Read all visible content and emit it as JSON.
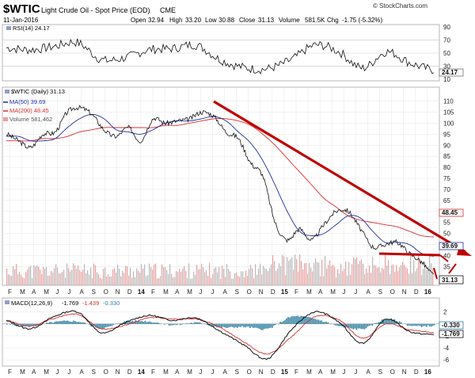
{
  "header": {
    "symbol": "$WTIC",
    "description": "Light Crude Oil - Spot Price (EOD)",
    "exchange": "CME",
    "date": "11-Jan-2016",
    "open_label": "Open",
    "open": "32.94",
    "high_label": "High",
    "high": "33.20",
    "low_label": "Low",
    "low": "30.88",
    "close_label": "Close",
    "close": "31.13",
    "volume_label": "Volume",
    "volume": "581.5K",
    "chg_label": "Chg",
    "chg": "-1.75 (-5.32%)",
    "credit": "© StockCharts.com"
  },
  "colors": {
    "price": "#111111",
    "ma50": "#1f2f9e",
    "ma200": "#d62f2f",
    "volume": "#e8a0a0",
    "annotation": "#c00000",
    "macd": "#111111",
    "signal": "#d62f2f",
    "histogram": "#2f7f9f",
    "grid": "#e6e6e6",
    "rsi_band": "#b8b8b8"
  },
  "rsi_panel": {
    "legend": "RSI(14) 24.17",
    "current_label": "24.17",
    "y_ticks": [
      "90",
      "70",
      "50",
      "30",
      "10"
    ]
  },
  "price_panel": {
    "legend_symbol": "$WTIC (Daily) 31.13",
    "legend_ma50": "MA(50) 39.69",
    "legend_ma200": "MA(200) 48.45",
    "legend_volume": "Volume 581,462",
    "y_ticks": [
      "110",
      "105",
      "100",
      "95",
      "90",
      "85",
      "80",
      "75",
      "70",
      "65",
      "60",
      "55",
      "50",
      "45",
      "40",
      "35"
    ],
    "badge_ma200": "48.45",
    "badge_ma50": "39.69",
    "badge_close": "31.13"
  },
  "macd_panel": {
    "legend_name": "MACD(12,26,9)",
    "legend_macd": "-1.769",
    "legend_signal": "-1.439",
    "legend_hist": "-0.330",
    "y_ticks": [
      "2",
      "0",
      "-2",
      "-4",
      "-6"
    ],
    "badge_hist": "-0.330",
    "badge_macd": "-1.769"
  },
  "x_axis_labels": [
    "F",
    "M",
    "A",
    "M",
    "J",
    "J",
    "A",
    "S",
    "O",
    "N",
    "D",
    "14",
    "F",
    "M",
    "A",
    "M",
    "J",
    "J",
    "A",
    "S",
    "O",
    "N",
    "D",
    "15",
    "F",
    "M",
    "A",
    "M",
    "J",
    "J",
    "A",
    "S",
    "O",
    "N",
    "D",
    "16"
  ],
  "chart_data": [
    {
      "type": "line",
      "title": "RSI(14)",
      "ylim": [
        10,
        90
      ],
      "x": [
        "Feb 2013",
        "Apr 2013",
        "Jun 2013",
        "Aug 2013",
        "Oct 2013",
        "Dec 2013",
        "Feb 2014",
        "Apr 2014",
        "Jun 2014",
        "Aug 2014",
        "Oct 2014",
        "Dec 2014",
        "Feb 2015",
        "Apr 2015",
        "Jun 2015",
        "Aug 2015",
        "Oct 2015",
        "Dec 2015",
        "Jan 2016"
      ],
      "series": [
        {
          "name": "RSI(14)",
          "values": [
            58,
            55,
            60,
            66,
            40,
            43,
            55,
            57,
            62,
            40,
            28,
            26,
            40,
            62,
            52,
            27,
            52,
            35,
            24.17
          ]
        }
      ]
    },
    {
      "type": "line",
      "title": "$WTIC (Daily)",
      "ylim": [
        30,
        112
      ],
      "x": [
        "Feb 2013",
        "Mar 2013",
        "Apr 2013",
        "May 2013",
        "Jun 2013",
        "Jul 2013",
        "Aug 2013",
        "Sep 2013",
        "Oct 2013",
        "Nov 2013",
        "Dec 2013",
        "Jan 2014",
        "Feb 2014",
        "Mar 2014",
        "Apr 2014",
        "May 2014",
        "Jun 2014",
        "Jul 2014",
        "Aug 2014",
        "Sep 2014",
        "Oct 2014",
        "Nov 2014",
        "Dec 2014",
        "Jan 2015",
        "Feb 2015",
        "Mar 2015",
        "Apr 2015",
        "May 2015",
        "Jun 2015",
        "Jul 2015",
        "Aug 2015",
        "Sep 2015",
        "Oct 2015",
        "Nov 2015",
        "Dec 2015",
        "Jan 2016"
      ],
      "series": [
        {
          "name": "$WTIC (Daily)",
          "values": [
            95,
            92,
            89,
            95,
            96,
            105,
            107,
            104,
            97,
            94,
            98,
            92,
            102,
            100,
            101,
            102,
            105,
            103,
            96,
            93,
            82,
            76,
            55,
            47,
            52,
            47,
            54,
            60,
            60,
            52,
            44,
            45,
            46,
            41,
            37,
            31.13
          ]
        },
        {
          "name": "MA(50)",
          "values": [
            94,
            94,
            92,
            92,
            93,
            98,
            102,
            104,
            102,
            97,
            96,
            95,
            97,
            100,
            101,
            101,
            102,
            103,
            101,
            96,
            91,
            83,
            72,
            60,
            51,
            49,
            50,
            54,
            58,
            57,
            51,
            46,
            46,
            45,
            41,
            39.69
          ]
        },
        {
          "name": "MA(200)",
          "values": [
            92,
            92,
            92,
            93,
            93,
            94,
            96,
            97,
            98,
            98,
            98,
            98,
            98,
            99,
            99,
            100,
            101,
            102,
            102,
            101,
            99,
            95,
            90,
            84,
            78,
            72,
            66,
            62,
            58,
            56,
            55,
            54,
            53,
            51,
            49,
            48.45
          ]
        }
      ],
      "annotations": [
        {
          "type": "trendline",
          "from": [
            "Jul 2014",
            107
          ],
          "to": [
            "Jan 2016",
            34
          ]
        },
        {
          "type": "trendline",
          "from": [
            "Aug 2015",
            37
          ],
          "to": [
            "Jan 2016",
            36
          ]
        }
      ]
    },
    {
      "type": "line",
      "title": "MACD(12,26,9)",
      "ylim": [
        -6.5,
        3
      ],
      "x": [
        "Feb 2013",
        "Apr 2013",
        "Jun 2013",
        "Aug 2013",
        "Oct 2013",
        "Dec 2013",
        "Feb 2014",
        "Apr 2014",
        "Jun 2014",
        "Aug 2014",
        "Oct 2014",
        "Dec 2014",
        "Feb 2015",
        "Apr 2015",
        "Jun 2015",
        "Aug 2015",
        "Oct 2015",
        "Dec 2015",
        "Jan 2016"
      ],
      "series": [
        {
          "name": "MACD",
          "values": [
            0.5,
            -0.8,
            1.2,
            2.0,
            -1.5,
            0.2,
            1.4,
            0.6,
            1.0,
            -1.2,
            -3.5,
            -5.8,
            -1.0,
            2.0,
            0.3,
            -3.2,
            0.8,
            -1.3,
            -1.769
          ]
        },
        {
          "name": "Signal",
          "values": [
            0.6,
            -0.4,
            0.9,
            1.6,
            -0.8,
            -0.2,
            1.0,
            0.8,
            0.8,
            -0.6,
            -3.0,
            -5.0,
            -2.2,
            1.2,
            0.7,
            -2.4,
            0.0,
            -1.0,
            -1.439
          ]
        },
        {
          "name": "Histogram",
          "values": [
            -0.1,
            -0.4,
            0.3,
            0.4,
            -0.7,
            0.4,
            0.4,
            -0.2,
            0.2,
            -0.6,
            -0.5,
            -0.8,
            1.2,
            0.8,
            -0.4,
            -0.8,
            0.8,
            -0.3,
            -0.33
          ]
        }
      ]
    }
  ]
}
